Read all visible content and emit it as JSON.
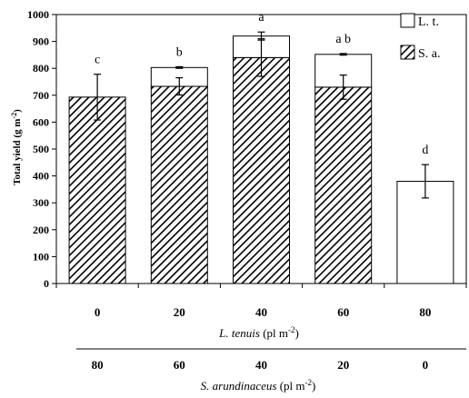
{
  "chart_data": {
    "type": "bar",
    "stacked": true,
    "ylabel_main": "Total yield (g m",
    "ylabel_sup": "-2",
    "ylabel_end": ")",
    "ylim": [
      0,
      1000
    ],
    "yticks": [
      "0",
      "100",
      "200",
      "300",
      "400",
      "500",
      "600",
      "700",
      "800",
      "900",
      "1000"
    ],
    "categories": [
      "0",
      "20",
      "40",
      "60",
      "80"
    ],
    "x2_categories": [
      "80",
      "60",
      "40",
      "20",
      "0"
    ],
    "xlabel_italic": "L. tenuis",
    "xlabel_rest": " (pl m",
    "xlabel_sup": "-2",
    "xlabel_end": ")",
    "x2label_italic": "S. arundinaceus",
    "x2label_rest": " (pl m",
    "x2label_sup": "-2",
    "x2label_end": ")",
    "series": [
      {
        "name": "S. a.",
        "pattern": "hatch",
        "values": [
          693,
          733,
          840,
          730,
          0
        ],
        "errors": [
          85,
          32,
          70,
          45,
          0
        ]
      },
      {
        "name": "L. t.",
        "pattern": "white",
        "values": [
          0,
          70,
          80,
          122,
          380
        ],
        "errors": [
          0,
          3,
          15,
          3,
          62
        ]
      }
    ],
    "significance": [
      "c",
      "b",
      "a",
      "a b",
      "d"
    ],
    "legend_position": "top-right"
  }
}
